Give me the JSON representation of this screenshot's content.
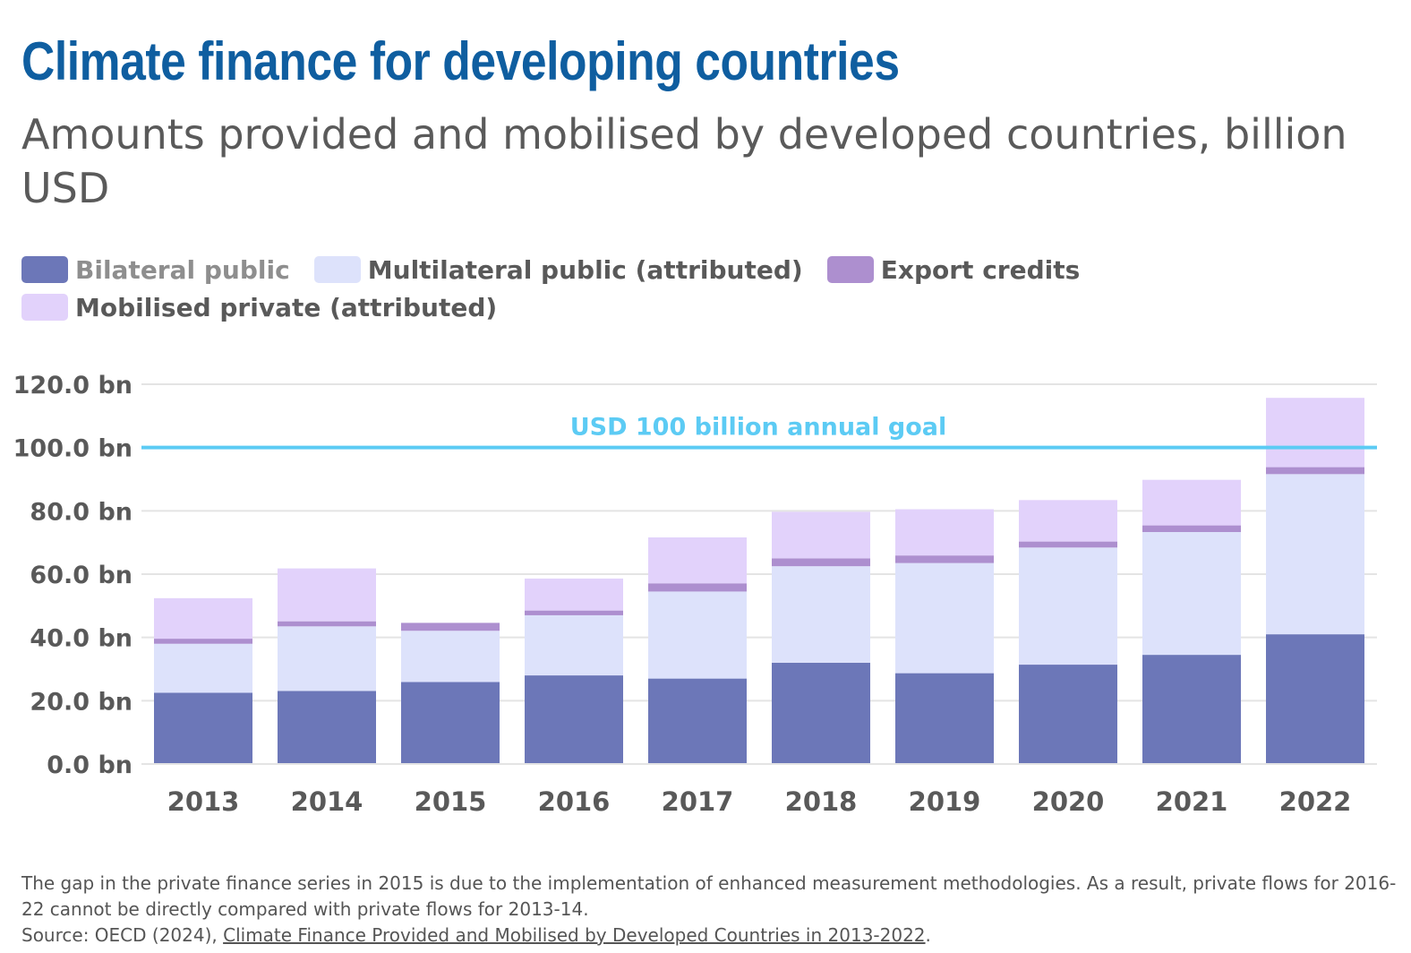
{
  "title": "Climate finance for developing countries",
  "subtitle": "Amounts provided and mobilised by developed countries, billion USD",
  "legend": [
    {
      "label": "Bilateral public",
      "color": "#6c77b8",
      "dim": true
    },
    {
      "label": "Multilateral public (attributed)",
      "color": "#dde2fb",
      "dim": false
    },
    {
      "label": "Export credits",
      "color": "#ad8fcf",
      "dim": false
    },
    {
      "label": "Mobilised private (attributed)",
      "color": "#e2d2fb",
      "dim": false
    }
  ],
  "chart_data": {
    "type": "bar",
    "stacked": true,
    "title": "",
    "xlabel": "",
    "ylabel": "",
    "categories": [
      "2013",
      "2014",
      "2015",
      "2016",
      "2017",
      "2018",
      "2019",
      "2020",
      "2021",
      "2022"
    ],
    "series": [
      {
        "name": "Bilateral public",
        "color": "#6c77b8",
        "values": [
          22.5,
          23.1,
          25.9,
          28.0,
          27.0,
          32.0,
          28.7,
          31.4,
          34.5,
          41.0
        ]
      },
      {
        "name": "Multilateral public (attributed)",
        "color": "#dde2fb",
        "values": [
          15.5,
          20.4,
          16.2,
          19.0,
          27.5,
          30.5,
          34.8,
          37.0,
          38.8,
          50.6
        ]
      },
      {
        "name": "Export credits",
        "color": "#ad8fcf",
        "values": [
          1.6,
          1.6,
          2.5,
          1.5,
          2.6,
          2.5,
          2.4,
          1.9,
          2.1,
          2.2
        ]
      },
      {
        "name": "Mobilised private (attributed)",
        "color": "#e2d2fb",
        "values": [
          12.8,
          16.7,
          null,
          10.1,
          14.5,
          14.7,
          14.6,
          13.1,
          14.4,
          21.9
        ]
      }
    ],
    "ylim": [
      0,
      120
    ],
    "yticks": [
      0,
      20,
      40,
      60,
      80,
      100,
      120
    ],
    "ytick_labels": [
      "0.0 bn",
      "20.0 bn",
      "40.0 bn",
      "60.0 bn",
      "80.0 bn",
      "100.0 bn",
      "120.0 bn"
    ],
    "reference_line": {
      "value": 100,
      "label": "USD 100 billion annual goal",
      "color": "#5ccbf4"
    },
    "grid": true,
    "legend_position": "top-left"
  },
  "footnote": {
    "note": "The gap in the private finance series in 2015 is due to the implementation of enhanced measurement methodologies. As a result, private flows for 2016-22 cannot be directly compared with private flows for 2013-14.",
    "source_prefix": "Source: OECD (2024), ",
    "source_link": "Climate Finance Provided and Mobilised by Developed Countries in 2013-2022",
    "source_suffix": "."
  }
}
